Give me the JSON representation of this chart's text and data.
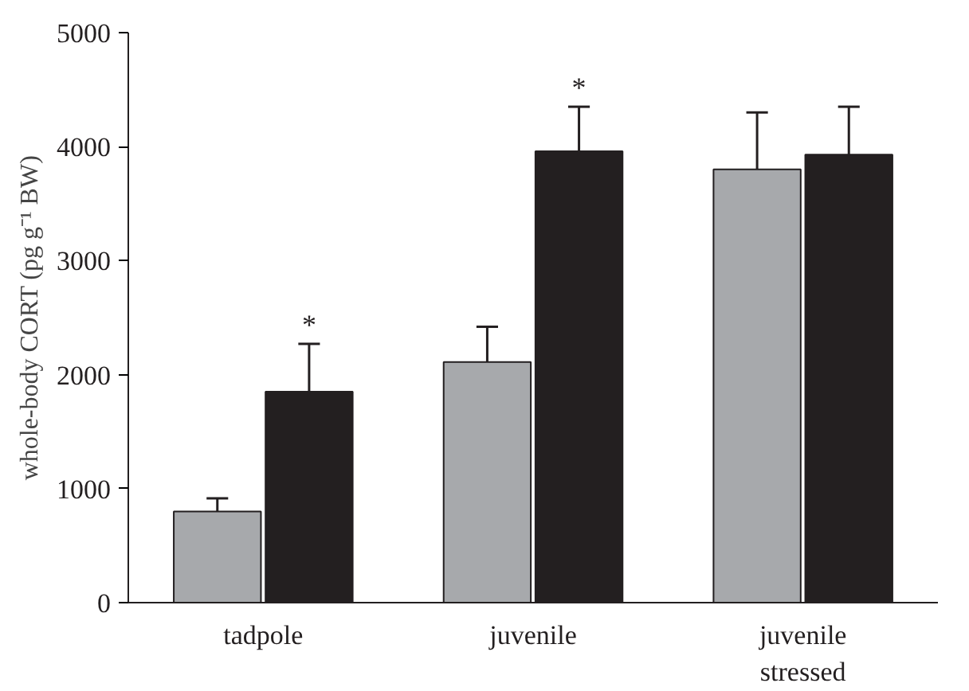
{
  "chart_data": {
    "type": "bar",
    "ylabel": "whole-body CORT (pg g⁻¹ BW)",
    "categories": [
      "tadpole",
      "juvenile",
      "juvenile\nstressed"
    ],
    "series": [
      {
        "color": "#a7a9ac",
        "values": [
          800,
          2110,
          3800
        ],
        "errors": [
          [
            800,
            915
          ],
          [
            2110,
            2420
          ],
          [
            3800,
            4300
          ]
        ]
      },
      {
        "color": "#231f20",
        "values": [
          1850,
          3960,
          3930
        ],
        "errors": [
          [
            1850,
            2270
          ],
          [
            3960,
            4350
          ],
          [
            3930,
            4350
          ]
        ]
      }
    ],
    "ylim": [
      0,
      5000
    ],
    "yticks": [
      0,
      1000,
      2000,
      3000,
      4000,
      5000
    ],
    "grid": false,
    "annotations": [
      "*",
      "*"
    ]
  }
}
